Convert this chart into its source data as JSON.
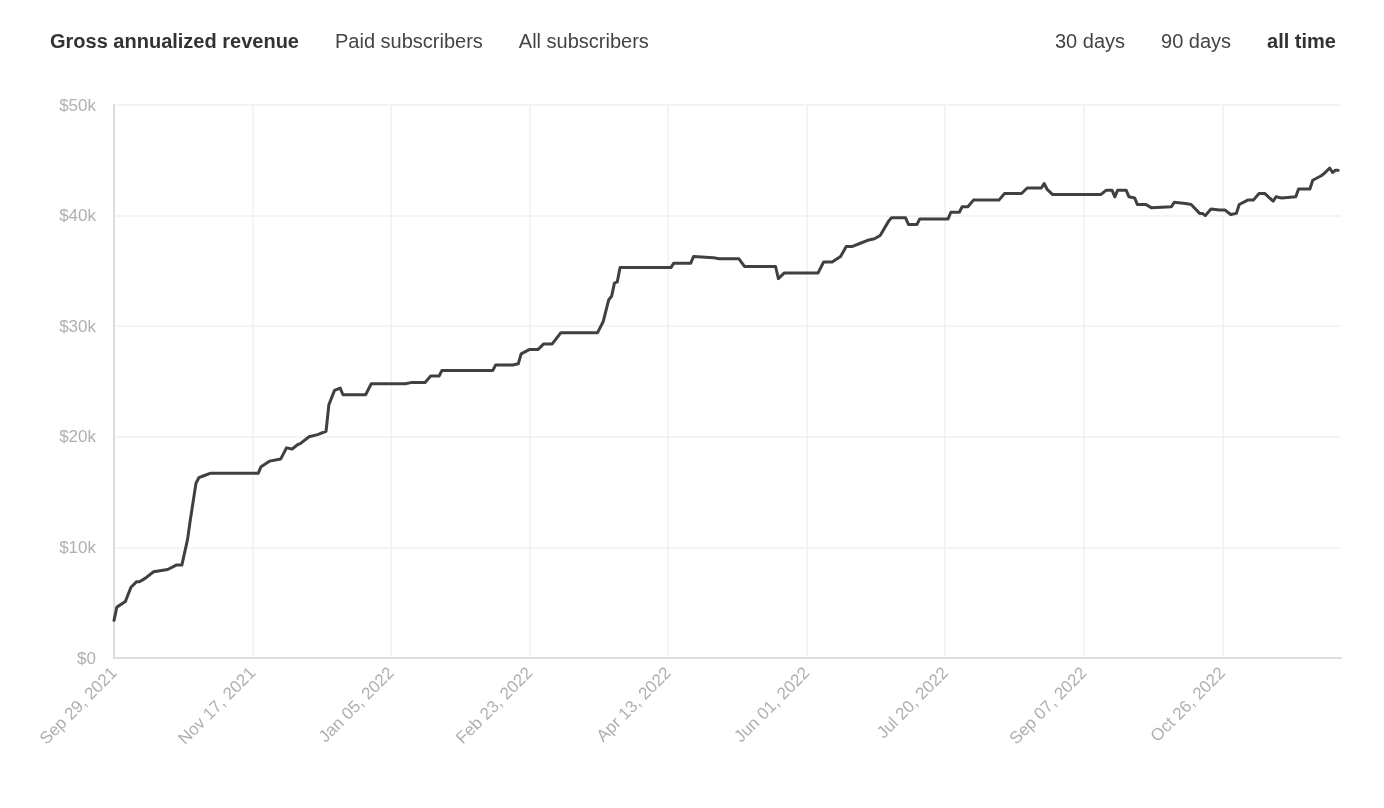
{
  "chart_data": {
    "type": "line",
    "title": "Gross annualized revenue",
    "annotations": [
      "Paid subscribers",
      "All subscribers",
      "30 days",
      "90 days",
      "all time"
    ],
    "x": [
      "2021-09-29",
      "2021-09-30",
      "2021-10-03",
      "2021-10-05",
      "2021-10-07",
      "2021-10-08",
      "2021-10-10",
      "2021-10-13",
      "2021-10-18",
      "2021-10-21",
      "2021-10-23",
      "2021-10-25",
      "2021-10-26",
      "2021-10-28",
      "2021-10-29",
      "2021-10-31",
      "2021-11-02",
      "2021-11-19",
      "2021-11-20",
      "2021-11-23",
      "2021-11-27",
      "2021-11-29",
      "2021-12-01",
      "2021-12-03",
      "2021-12-04",
      "2021-12-07",
      "2021-12-10",
      "2021-12-13",
      "2021-12-14",
      "2021-12-16",
      "2021-12-18",
      "2021-12-19",
      "2021-12-27",
      "2021-12-29",
      "2022-01-10",
      "2022-01-12",
      "2022-01-17",
      "2022-01-19",
      "2022-01-22",
      "2022-01-23",
      "2022-02-10",
      "2022-02-11",
      "2022-02-17",
      "2022-02-19",
      "2022-02-20",
      "2022-02-23",
      "2022-02-26",
      "2022-02-28",
      "2022-03-03",
      "2022-03-06",
      "2022-03-19",
      "2022-03-21",
      "2022-03-23",
      "2022-03-24",
      "2022-03-25",
      "2022-03-26",
      "2022-03-27",
      "2022-04-14",
      "2022-04-15",
      "2022-04-21",
      "2022-04-22",
      "2022-04-29",
      "2022-05-01",
      "2022-05-08",
      "2022-05-10",
      "2022-05-21",
      "2022-05-22",
      "2022-05-24",
      "2022-06-05",
      "2022-06-07",
      "2022-06-10",
      "2022-06-13",
      "2022-06-15",
      "2022-06-17",
      "2022-06-20",
      "2022-06-23",
      "2022-06-25",
      "2022-06-27",
      "2022-06-30",
      "2022-07-01",
      "2022-07-06",
      "2022-07-07",
      "2022-07-10",
      "2022-07-11",
      "2022-07-21",
      "2022-07-22",
      "2022-07-25",
      "2022-07-26",
      "2022-07-28",
      "2022-07-30",
      "2022-08-08",
      "2022-08-10",
      "2022-08-16",
      "2022-08-18",
      "2022-08-23",
      "2022-08-24",
      "2022-08-25",
      "2022-08-27",
      "2022-09-13",
      "2022-09-15",
      "2022-09-17",
      "2022-09-18",
      "2022-09-19",
      "2022-09-22",
      "2022-09-23",
      "2022-09-25",
      "2022-09-26",
      "2022-09-29",
      "2022-10-01",
      "2022-10-08",
      "2022-10-09",
      "2022-10-13",
      "2022-10-15",
      "2022-10-18",
      "2022-10-19",
      "2022-10-20",
      "2022-10-22",
      "2022-10-25",
      "2022-10-27",
      "2022-10-29",
      "2022-10-31",
      "2022-11-01",
      "2022-11-04",
      "2022-11-06",
      "2022-11-08",
      "2022-11-10",
      "2022-11-13",
      "2022-11-14",
      "2022-11-16",
      "2022-11-21",
      "2022-11-22",
      "2022-11-26",
      "2022-11-27",
      "2022-11-30",
      "2022-12-01",
      "2022-12-03",
      "2022-12-04",
      "2022-12-05",
      "2022-12-06"
    ],
    "series": [
      {
        "color": "#404040",
        "values": [
          3400,
          4600,
          5100,
          6400,
          6900,
          6900,
          7200,
          7800,
          8000,
          8400,
          8400,
          10700,
          12500,
          15800,
          16300,
          16500,
          16700,
          16700,
          17300,
          17800,
          18000,
          19000,
          18900,
          19300,
          19400,
          20000,
          20200,
          20500,
          22900,
          24200,
          24400,
          23800,
          23800,
          24800,
          24800,
          24900,
          24900,
          25500,
          25500,
          26000,
          26000,
          26500,
          26500,
          26600,
          27500,
          27900,
          27900,
          28400,
          28400,
          29400,
          29400,
          30400,
          32400,
          32700,
          33900,
          34000,
          35300,
          35300,
          35700,
          35700,
          36300,
          36200,
          36100,
          36100,
          35400,
          35400,
          34300,
          34800,
          34800,
          35800,
          35800,
          36300,
          37200,
          37200,
          37500,
          37800,
          37900,
          38200,
          39500,
          39800,
          39800,
          39200,
          39200,
          39700,
          39700,
          40300,
          40300,
          40800,
          40800,
          41400,
          41400,
          42000,
          42000,
          42500,
          42500,
          42900,
          42400,
          41900,
          41900,
          42300,
          42300,
          41700,
          42300,
          42300,
          41700,
          41600,
          41000,
          41000,
          40700,
          40800,
          41200,
          41100,
          41000,
          40200,
          40200,
          40000,
          40600,
          40500,
          40500,
          40100,
          40200,
          41000,
          41400,
          41400,
          42000,
          42000,
          41300,
          41700,
          41600,
          41700,
          42400,
          42400,
          43200,
          43600,
          43800,
          44300,
          43900,
          44100,
          44100
        ]
      }
    ],
    "xlim": [
      "2021-09-29",
      "2022-12-07"
    ],
    "ylim": [
      0,
      50000
    ],
    "yticks": [
      {
        "value": 0,
        "label": "$0"
      },
      {
        "value": 10000,
        "label": "$10k"
      },
      {
        "value": 20000,
        "label": "$20k"
      },
      {
        "value": 30000,
        "label": "$30k"
      },
      {
        "value": 40000,
        "label": "$40k"
      },
      {
        "value": 50000,
        "label": "$50k"
      }
    ],
    "xticks": [
      {
        "value": "2021-09-29",
        "label": "Sep 29, 2021"
      },
      {
        "value": "2021-11-17",
        "label": "Nov 17, 2021"
      },
      {
        "value": "2022-01-05",
        "label": "Jan 05, 2022"
      },
      {
        "value": "2022-02-23",
        "label": "Feb 23, 2022"
      },
      {
        "value": "2022-04-13",
        "label": "Apr 13, 2022"
      },
      {
        "value": "2022-06-01",
        "label": "Jun 01, 2022"
      },
      {
        "value": "2022-07-20",
        "label": "Jul 20, 2022"
      },
      {
        "value": "2022-09-07",
        "label": "Sep 07, 2022"
      },
      {
        "value": "2022-10-26",
        "label": "Oct 26, 2022"
      }
    ],
    "grid": true,
    "marker": "none",
    "line_style": "solid"
  }
}
